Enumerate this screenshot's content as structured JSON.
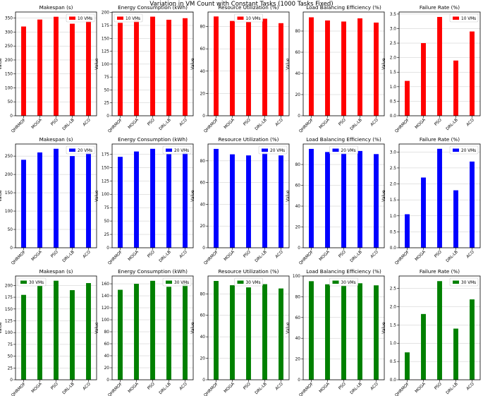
{
  "suptitle": "Variation in VM Count with Constant Tasks (1000 Tasks Fixed)",
  "colors": {
    "10 VMs": "#ff0000",
    "20 VMs": "#0000ff",
    "30 VMs": "#008000"
  },
  "chart_data": [
    {
      "type": "bar",
      "title": "Makespan (s)",
      "ylabel": "Value",
      "categories": [
        "QHRMOF",
        "MOGA",
        "PSO",
        "DRL-LB",
        "ACO"
      ],
      "series": [
        {
          "name": "10 VMs",
          "values": [
            320,
            345,
            355,
            330,
            340
          ]
        }
      ],
      "ylim": [
        0,
        372
      ],
      "yticks": [
        0,
        50,
        100,
        150,
        200,
        250,
        300,
        350
      ],
      "grid": "y",
      "legend": "top-right"
    },
    {
      "type": "bar",
      "title": "Energy Consumption (kWh)",
      "ylabel": "Value",
      "categories": [
        "QHRMOF",
        "MOGA",
        "PSO",
        "DRL-LB",
        "ACO"
      ],
      "series": [
        {
          "name": "10 VMs",
          "values": [
            180,
            185,
            192,
            186,
            189
          ]
        }
      ],
      "ylim": [
        0,
        201
      ],
      "yticks": [
        0,
        25,
        50,
        75,
        100,
        125,
        150,
        175,
        200
      ],
      "grid": "y",
      "legend": "top-left"
    },
    {
      "type": "bar",
      "title": "Resource Utilization (%)",
      "ylabel": "Value",
      "categories": [
        "QHRMOF",
        "MOGA",
        "PSO",
        "DRL-LB",
        "ACO"
      ],
      "series": [
        {
          "name": "10 VMs",
          "values": [
            89,
            85,
            84,
            87,
            83
          ]
        }
      ],
      "ylim": [
        0,
        93
      ],
      "yticks": [
        0,
        20,
        40,
        60,
        80
      ],
      "grid": "y",
      "legend": "top-center"
    },
    {
      "type": "bar",
      "title": "Load Balancing Efficiency (%)",
      "ylabel": "Value",
      "categories": [
        "QHRMOF",
        "MOGA",
        "PSO",
        "DRL-LB",
        "ACO"
      ],
      "series": [
        {
          "name": "10 VMs",
          "values": [
            93,
            90,
            89,
            92,
            88
          ]
        }
      ],
      "ylim": [
        0,
        98
      ],
      "yticks": [
        0,
        20,
        40,
        60,
        80
      ],
      "grid": "y",
      "legend": "none"
    },
    {
      "type": "bar",
      "title": "Failure Rate (%)",
      "ylabel": "Value",
      "categories": [
        "QHRMOF",
        "MOGA",
        "PSO",
        "DRL-LB",
        "ACO"
      ],
      "series": [
        {
          "name": "10 VMs",
          "values": [
            1.2,
            2.5,
            3.4,
            1.9,
            2.9
          ]
        }
      ],
      "ylim": [
        0,
        3.57
      ],
      "yticks": [
        0,
        0.5,
        1.0,
        1.5,
        2.0,
        2.5,
        3.0,
        3.5
      ],
      "grid": "y",
      "legend": "top-right"
    },
    {
      "type": "bar",
      "title": "Makespan (s)",
      "ylabel": "Value",
      "categories": [
        "QHRMOF",
        "MOGA",
        "PSO",
        "DRL-LB",
        "ACO"
      ],
      "series": [
        {
          "name": "20 VMs",
          "values": [
            240,
            260,
            270,
            250,
            260
          ]
        }
      ],
      "ylim": [
        0,
        283
      ],
      "yticks": [
        0,
        50,
        100,
        150,
        200,
        250
      ],
      "grid": "y",
      "legend": "top-right"
    },
    {
      "type": "bar",
      "title": "Energy Consumption (kWh)",
      "ylabel": "Value",
      "categories": [
        "QHRMOF",
        "MOGA",
        "PSO",
        "DRL-LB",
        "ACO"
      ],
      "series": [
        {
          "name": "20 VMs",
          "values": [
            170,
            180,
            185,
            175,
            178
          ]
        }
      ],
      "ylim": [
        0,
        194
      ],
      "yticks": [
        0,
        25,
        50,
        75,
        100,
        125,
        150,
        175
      ],
      "grid": "y",
      "legend": "top-right"
    },
    {
      "type": "bar",
      "title": "Resource Utilization (%)",
      "ylabel": "Value",
      "categories": [
        "QHRMOF",
        "MOGA",
        "PSO",
        "DRL-LB",
        "ACO"
      ],
      "series": [
        {
          "name": "20 VMs",
          "values": [
            91,
            86,
            85,
            88,
            85
          ]
        }
      ],
      "ylim": [
        0,
        95.5
      ],
      "yticks": [
        0,
        20,
        40,
        60,
        80
      ],
      "grid": "y",
      "legend": "top-right"
    },
    {
      "type": "bar",
      "title": "Load Balancing Efficiency (%)",
      "ylabel": "Value",
      "categories": [
        "QHRMOF",
        "MOGA",
        "PSO",
        "DRL-LB",
        "ACO"
      ],
      "series": [
        {
          "name": "20 VMs",
          "values": [
            95,
            92,
            91,
            93,
            90
          ]
        }
      ],
      "ylim": [
        0,
        99.7
      ],
      "yticks": [
        0,
        20,
        40,
        60,
        80
      ],
      "grid": "y",
      "legend": "top-center"
    },
    {
      "type": "bar",
      "title": "Failure Rate (%)",
      "ylabel": "Value",
      "categories": [
        "QHRMOF",
        "MOGA",
        "PSO",
        "DRL-LB",
        "ACO"
      ],
      "series": [
        {
          "name": "20 VMs",
          "values": [
            1.05,
            2.2,
            3.1,
            1.8,
            2.7
          ]
        }
      ],
      "ylim": [
        0,
        3.25
      ],
      "yticks": [
        0,
        0.5,
        1.0,
        1.5,
        2.0,
        2.5,
        3.0
      ],
      "grid": "y",
      "legend": "top-right"
    },
    {
      "type": "bar",
      "title": "Makespan (s)",
      "ylabel": "Value",
      "categories": [
        "QHRMOF",
        "MOGA",
        "PSO",
        "DRL-LB",
        "ACO"
      ],
      "series": [
        {
          "name": "30 VMs",
          "values": [
            180,
            200,
            210,
            190,
            205
          ]
        }
      ],
      "ylim": [
        0,
        220
      ],
      "yticks": [
        0,
        25,
        50,
        75,
        100,
        125,
        150,
        175,
        200
      ],
      "grid": "y",
      "legend": "top-left"
    },
    {
      "type": "bar",
      "title": "Energy Consumption (kWh)",
      "ylabel": "Value",
      "categories": [
        "QHRMOF",
        "MOGA",
        "PSO",
        "DRL-LB",
        "ACO"
      ],
      "series": [
        {
          "name": "30 VMs",
          "values": [
            150,
            160,
            165,
            155,
            160
          ]
        }
      ],
      "ylim": [
        0,
        173
      ],
      "yticks": [
        0,
        20,
        40,
        60,
        80,
        100,
        120,
        140,
        160
      ],
      "grid": "y",
      "legend": "top-right"
    },
    {
      "type": "bar",
      "title": "Resource Utilization (%)",
      "ylabel": "Value",
      "categories": [
        "QHRMOF",
        "MOGA",
        "PSO",
        "DRL-LB",
        "ACO"
      ],
      "series": [
        {
          "name": "30 VMs",
          "values": [
            92,
            88,
            86,
            89,
            85
          ]
        }
      ],
      "ylim": [
        0,
        96.6
      ],
      "yticks": [
        0,
        20,
        40,
        60,
        80
      ],
      "grid": "y",
      "legend": "top-center"
    },
    {
      "type": "bar",
      "title": "Load Balancing Efficiency (%)",
      "ylabel": "Value",
      "categories": [
        "QHRMOF",
        "MOGA",
        "PSO",
        "DRL-LB",
        "ACO"
      ],
      "series": [
        {
          "name": "30 VMs",
          "values": [
            95,
            92,
            91,
            93,
            91
          ]
        }
      ],
      "ylim": [
        0,
        100
      ],
      "yticks": [
        0,
        20,
        40,
        60,
        80,
        100
      ],
      "grid": "y",
      "legend": "top-center"
    },
    {
      "type": "bar",
      "title": "Failure Rate (%)",
      "ylabel": "Value",
      "categories": [
        "QHRMOF",
        "MOGA",
        "PSO",
        "DRL-LB",
        "ACO"
      ],
      "series": [
        {
          "name": "30 VMs",
          "values": [
            0.75,
            1.8,
            2.7,
            1.4,
            2.2
          ]
        }
      ],
      "ylim": [
        0,
        2.84
      ],
      "yticks": [
        0,
        0.5,
        1.0,
        1.5,
        2.0,
        2.5
      ],
      "grid": "y",
      "legend": "top-right"
    }
  ]
}
